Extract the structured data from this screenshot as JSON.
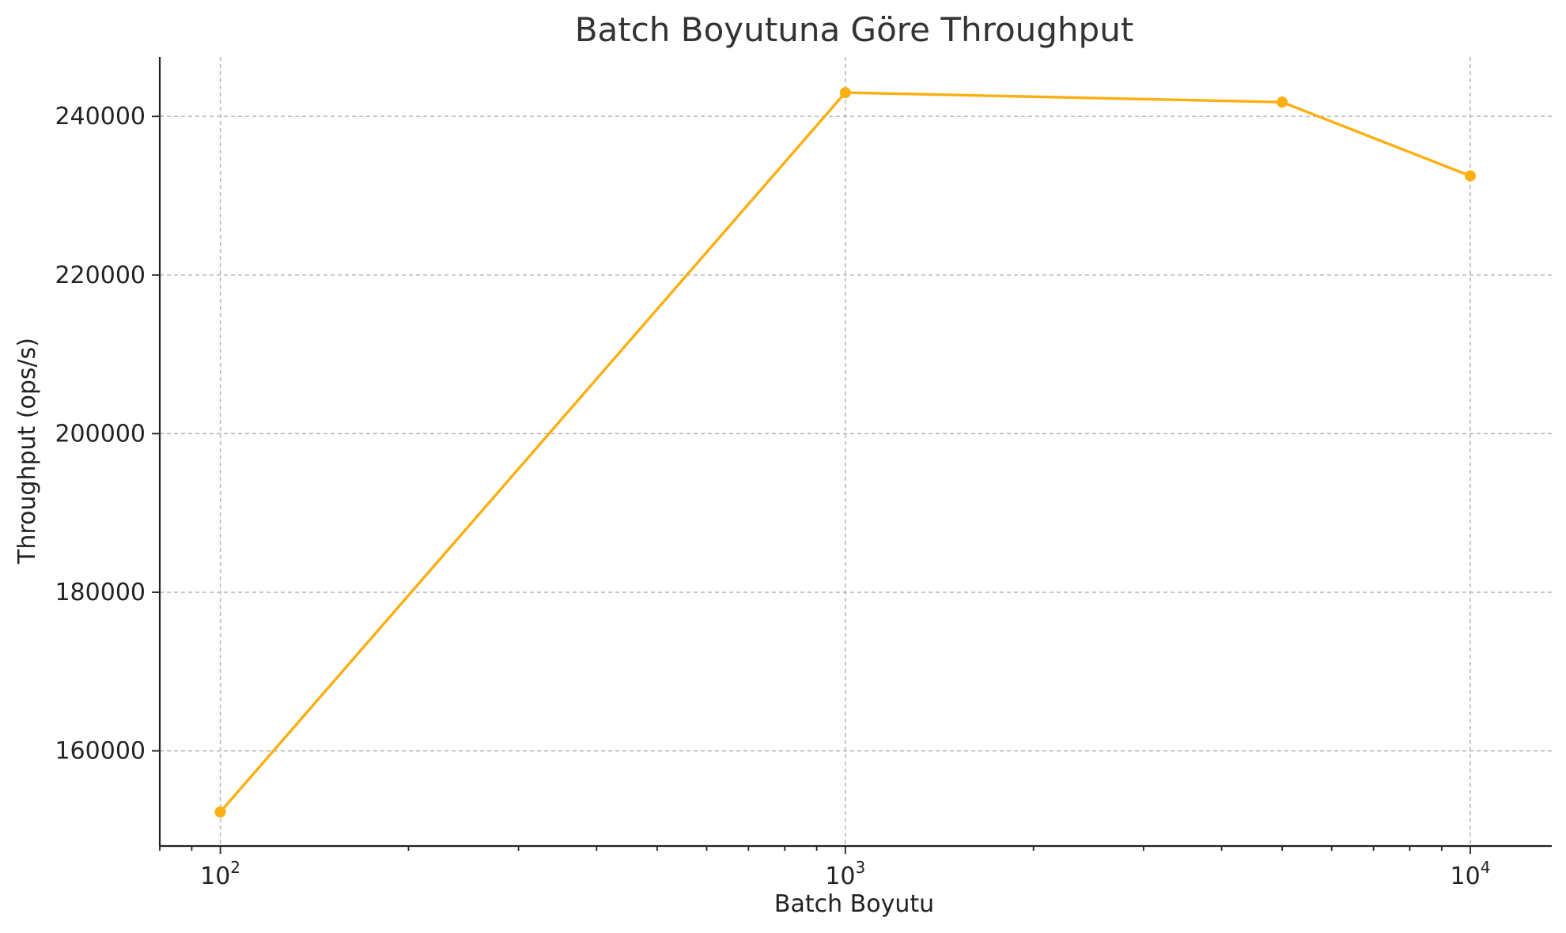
{
  "chart_data": {
    "type": "line",
    "title": "Batch Boyutuna Göre Throughput",
    "xlabel": "Batch Boyutu",
    "ylabel": "Throughput (ops/s)",
    "x_scale": "log",
    "xlim": [
      80,
      13500
    ],
    "ylim": [
      148000,
      247500
    ],
    "x_ticks": [
      {
        "value": 100,
        "base": "10",
        "exp": "2"
      },
      {
        "value": 1000,
        "base": "10",
        "exp": "3"
      },
      {
        "value": 10000,
        "base": "10",
        "exp": "4"
      }
    ],
    "y_ticks": [
      {
        "value": 160000,
        "label": "160000"
      },
      {
        "value": 180000,
        "label": "180000"
      },
      {
        "value": 200000,
        "label": "200000"
      },
      {
        "value": 220000,
        "label": "220000"
      },
      {
        "value": 240000,
        "label": "240000"
      }
    ],
    "grid": true,
    "series": [
      {
        "color": "#FBAF10",
        "x": [
          100,
          1000,
          5000,
          10000
        ],
        "y": [
          152300,
          243000,
          241800,
          232500
        ]
      }
    ]
  }
}
